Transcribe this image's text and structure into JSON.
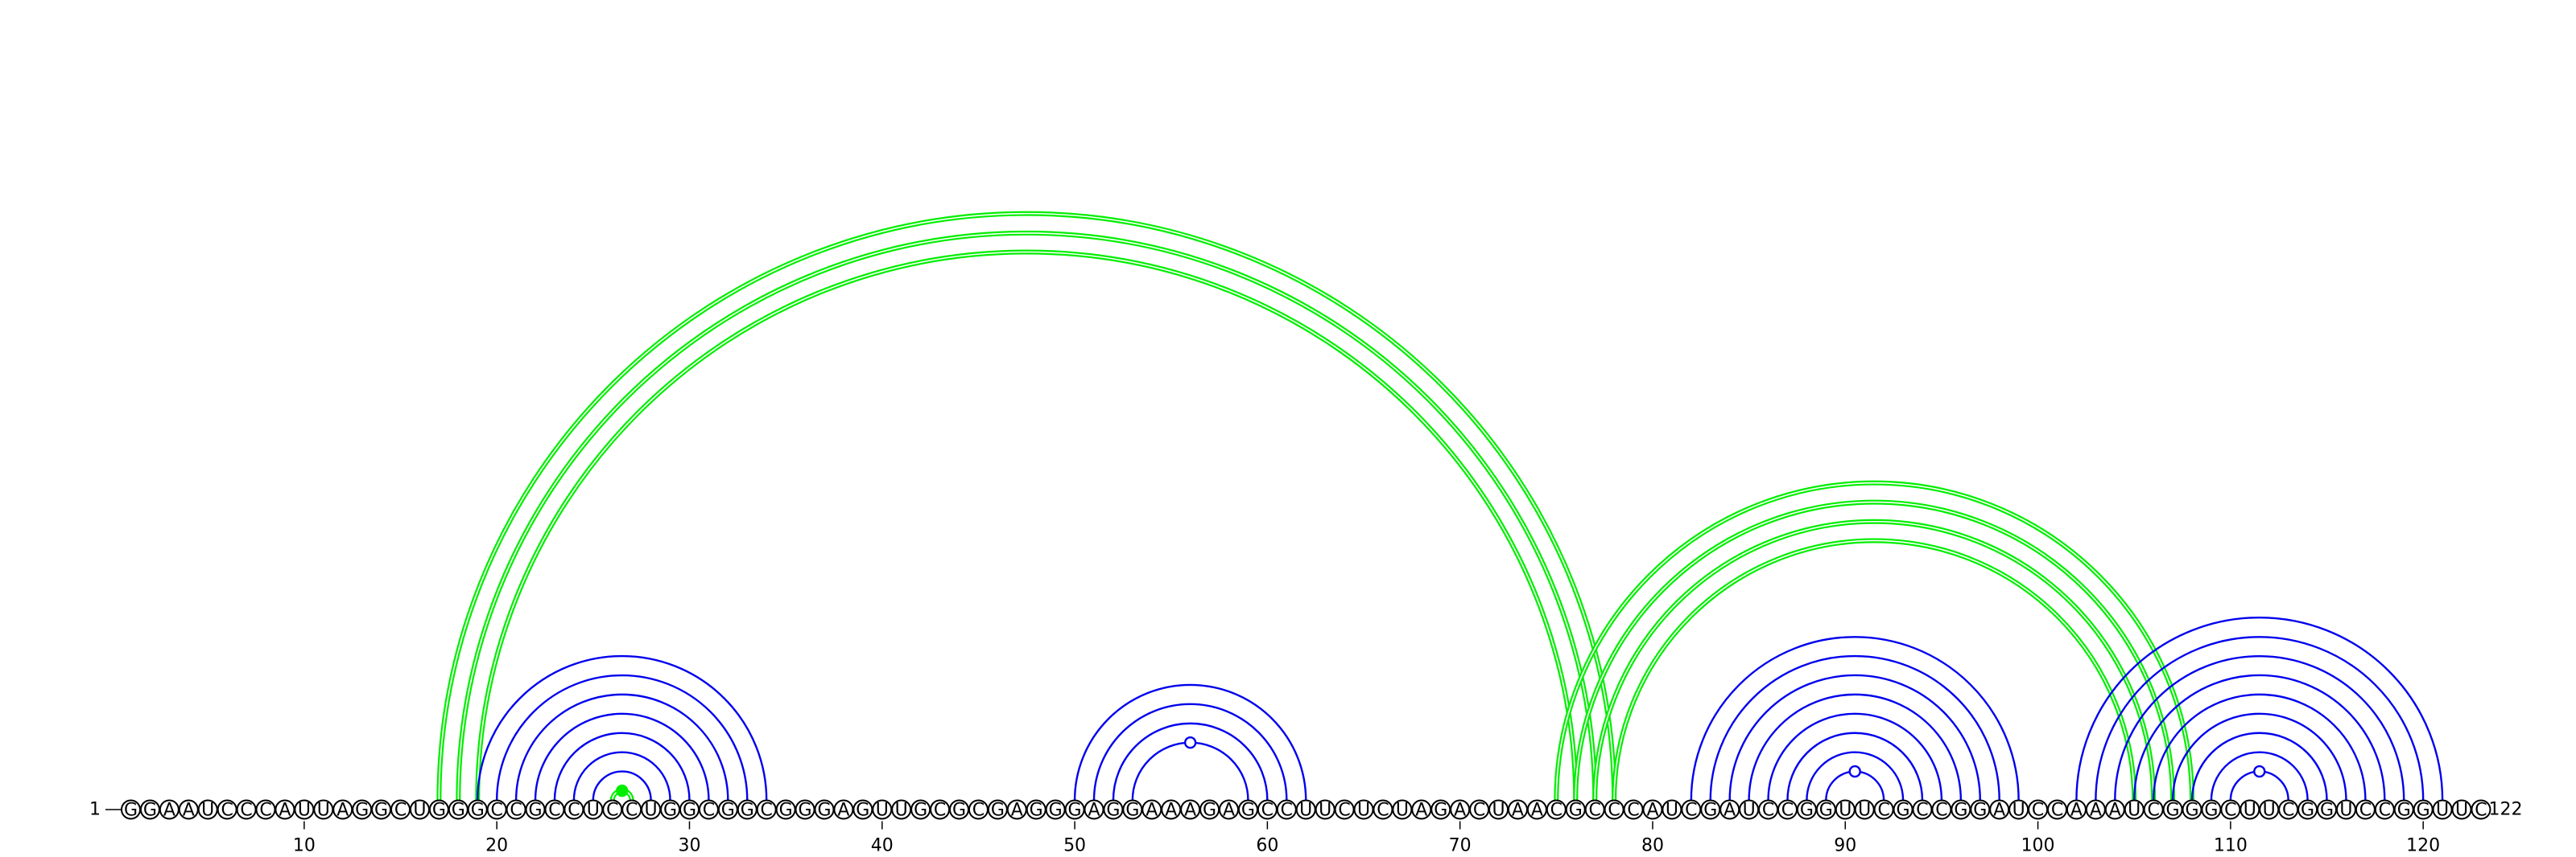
{
  "chart_data": {
    "type": "arc-diagram",
    "sequence": "GGAAUCCCAUUAGGCUGGGCCGCCUCCUGGCGGCGGGAGUUGCGCGAGGGAGGAAAGAGCCUUCUCUAGACUAACGCCCAUCGAUCCGGUUCGCCGGAUCCAAAUCGGGCUUCGGUCCGGUUC",
    "length": 122,
    "start_label": "1",
    "end_label": "122",
    "tick_positions": [
      10,
      20,
      30,
      40,
      50,
      60,
      70,
      80,
      90,
      100,
      110,
      120
    ],
    "tick_labels": [
      "10",
      "20",
      "30",
      "40",
      "50",
      "60",
      "70",
      "80",
      "90",
      "100",
      "110",
      "120"
    ],
    "colors": {
      "secondary_structure": "#0000ee",
      "pseudoknot": "#00ee00",
      "backbone": "#000000"
    },
    "secondary_structure_pairs": [
      [
        19,
        34
      ],
      [
        20,
        33
      ],
      [
        21,
        32
      ],
      [
        22,
        31
      ],
      [
        23,
        30
      ],
      [
        24,
        29
      ],
      [
        25,
        28
      ],
      [
        50,
        62
      ],
      [
        51,
        61
      ],
      [
        52,
        60
      ],
      [
        53,
        59
      ],
      [
        82,
        99
      ],
      [
        83,
        98
      ],
      [
        84,
        97
      ],
      [
        85,
        96
      ],
      [
        86,
        95
      ],
      [
        87,
        94
      ],
      [
        88,
        93
      ],
      [
        89,
        92
      ],
      [
        102,
        121
      ],
      [
        103,
        120
      ],
      [
        104,
        119
      ],
      [
        105,
        118
      ],
      [
        106,
        117
      ],
      [
        107,
        116
      ],
      [
        108,
        115
      ],
      [
        109,
        114
      ],
      [
        110,
        113
      ]
    ],
    "pseudoknot_pairs": [
      [
        17,
        78
      ],
      [
        18,
        77
      ],
      [
        19,
        76
      ],
      [
        75,
        108
      ],
      [
        76,
        107
      ],
      [
        77,
        106
      ],
      [
        78,
        105
      ],
      [
        26,
        27
      ]
    ],
    "unpaired_markers": [
      {
        "position": 56,
        "color": "#0000ee",
        "filled": false
      },
      {
        "position": 90.5,
        "color": "#0000ee",
        "filled": false
      },
      {
        "position": 111.5,
        "color": "#0000ee",
        "filled": false
      },
      {
        "position": 26.5,
        "color": "#00ee00",
        "filled": true
      }
    ]
  }
}
